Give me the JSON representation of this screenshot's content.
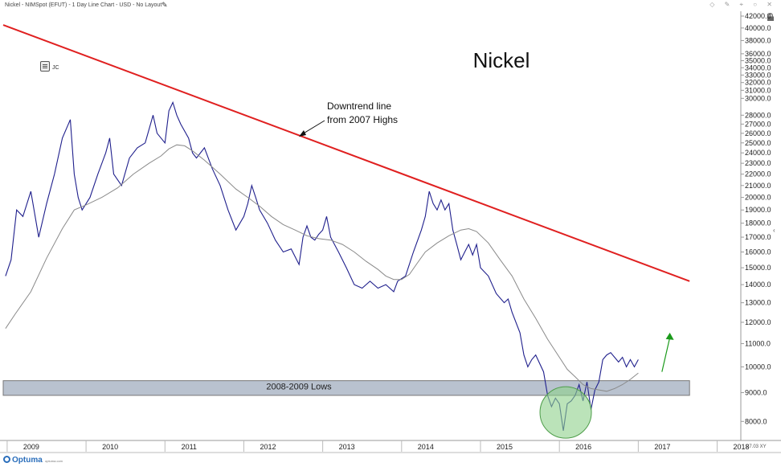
{
  "header": {
    "title": "Nickel - NIMSpot (EFUT) - 1 Day Line Chart - USD - No Layout",
    "edit_icon": "pencil-icon",
    "toolbar_icons": "◇ ✎ ⌖ ○ ✕"
  },
  "badge": {
    "label": "JC",
    "icon": "note-icon"
  },
  "footer": {
    "brand": "Optuma",
    "url": "optuma.com",
    "corner_readout": "27.03 XY"
  },
  "chart_data": {
    "type": "line",
    "title": "Nickel",
    "y_scale": "log",
    "ylim": [
      7400,
      42000
    ],
    "y_ticks": [
      42000,
      40000,
      38000,
      36000,
      35000,
      34000,
      33000,
      32000,
      31000,
      30000,
      28000,
      27000,
      26000,
      25000,
      24000,
      23000,
      22000,
      21000,
      20000,
      19000,
      18000,
      17000,
      16000,
      15000,
      14000,
      13000,
      12000,
      11000,
      10000,
      9000,
      8000
    ],
    "y_tick_labels": [
      "42000.0",
      "40000.0",
      "38000.0",
      "36000.0",
      "35000.0",
      "34000.0",
      "33000.0",
      "32000.0",
      "31000.0",
      "30000.0",
      "28000.0",
      "27000.0",
      "26000.0",
      "25000.0",
      "24000.0",
      "23000.0",
      "22000.0",
      "21000.0",
      "20000.0",
      "19000.0",
      "18000.0",
      "17000.0",
      "16000.0",
      "15000.0",
      "14000.0",
      "13000.0",
      "12000.0",
      "11000.0",
      "10000.0",
      "9000.0",
      "8000.0"
    ],
    "x_range": [
      2008.95,
      2018.3
    ],
    "x_ticks": [
      "2009",
      "2010",
      "2011",
      "2012",
      "2013",
      "2014",
      "2015",
      "2016",
      "2017",
      "2018"
    ],
    "x_tick_values": [
      2009,
      2010,
      2011,
      2012,
      2013,
      2014,
      2015,
      2016,
      2017,
      2018
    ],
    "series": [
      {
        "role": "price",
        "color": "#1f1f8c",
        "points": [
          [
            2008.98,
            14500
          ],
          [
            2009.05,
            15500
          ],
          [
            2009.12,
            19000
          ],
          [
            2009.2,
            18500
          ],
          [
            2009.3,
            20500
          ],
          [
            2009.4,
            17000
          ],
          [
            2009.5,
            19500
          ],
          [
            2009.6,
            22000
          ],
          [
            2009.7,
            25500
          ],
          [
            2009.8,
            27500
          ],
          [
            2009.85,
            22000
          ],
          [
            2009.9,
            20000
          ],
          [
            2009.95,
            19000
          ],
          [
            2010.05,
            20000
          ],
          [
            2010.15,
            22000
          ],
          [
            2010.25,
            24000
          ],
          [
            2010.3,
            25500
          ],
          [
            2010.35,
            22000
          ],
          [
            2010.45,
            21000
          ],
          [
            2010.55,
            23500
          ],
          [
            2010.65,
            24500
          ],
          [
            2010.75,
            25000
          ],
          [
            2010.85,
            28000
          ],
          [
            2010.9,
            26000
          ],
          [
            2011.0,
            25000
          ],
          [
            2011.05,
            28500
          ],
          [
            2011.1,
            29500
          ],
          [
            2011.15,
            28000
          ],
          [
            2011.2,
            27000
          ],
          [
            2011.3,
            25500
          ],
          [
            2011.35,
            24000
          ],
          [
            2011.4,
            23500
          ],
          [
            2011.5,
            24500
          ],
          [
            2011.6,
            22500
          ],
          [
            2011.7,
            21000
          ],
          [
            2011.8,
            19000
          ],
          [
            2011.9,
            17500
          ],
          [
            2012.0,
            18500
          ],
          [
            2012.05,
            19500
          ],
          [
            2012.1,
            21000
          ],
          [
            2012.15,
            20000
          ],
          [
            2012.2,
            19000
          ],
          [
            2012.3,
            18000
          ],
          [
            2012.4,
            16800
          ],
          [
            2012.5,
            16000
          ],
          [
            2012.6,
            16200
          ],
          [
            2012.7,
            15200
          ],
          [
            2012.75,
            17000
          ],
          [
            2012.8,
            17800
          ],
          [
            2012.85,
            17000
          ],
          [
            2012.9,
            16800
          ],
          [
            2012.95,
            17200
          ],
          [
            2013.0,
            17500
          ],
          [
            2013.05,
            18500
          ],
          [
            2013.1,
            17000
          ],
          [
            2013.2,
            16000
          ],
          [
            2013.3,
            15000
          ],
          [
            2013.4,
            14000
          ],
          [
            2013.5,
            13800
          ],
          [
            2013.6,
            14200
          ],
          [
            2013.7,
            13800
          ],
          [
            2013.8,
            14000
          ],
          [
            2013.9,
            13600
          ],
          [
            2013.95,
            14200
          ],
          [
            2014.05,
            14500
          ],
          [
            2014.15,
            16000
          ],
          [
            2014.25,
            17500
          ],
          [
            2014.3,
            18500
          ],
          [
            2014.35,
            20500
          ],
          [
            2014.4,
            19500
          ],
          [
            2014.45,
            19000
          ],
          [
            2014.5,
            19800
          ],
          [
            2014.55,
            19000
          ],
          [
            2014.6,
            19500
          ],
          [
            2014.65,
            17500
          ],
          [
            2014.7,
            16500
          ],
          [
            2014.75,
            15500
          ],
          [
            2014.8,
            16000
          ],
          [
            2014.85,
            16500
          ],
          [
            2014.9,
            15800
          ],
          [
            2014.95,
            16500
          ],
          [
            2015.0,
            15000
          ],
          [
            2015.1,
            14500
          ],
          [
            2015.2,
            13500
          ],
          [
            2015.3,
            13000
          ],
          [
            2015.35,
            13200
          ],
          [
            2015.4,
            12500
          ],
          [
            2015.5,
            11500
          ],
          [
            2015.55,
            10500
          ],
          [
            2015.6,
            10000
          ],
          [
            2015.65,
            10300
          ],
          [
            2015.7,
            10500
          ],
          [
            2015.8,
            9800
          ],
          [
            2015.85,
            8900
          ],
          [
            2015.9,
            8500
          ],
          [
            2015.95,
            8800
          ],
          [
            2016.0,
            8600
          ],
          [
            2016.05,
            7700
          ],
          [
            2016.1,
            8600
          ],
          [
            2016.15,
            8700
          ],
          [
            2016.2,
            8900
          ],
          [
            2016.25,
            9300
          ],
          [
            2016.3,
            8700
          ],
          [
            2016.35,
            9400
          ],
          [
            2016.4,
            8400
          ],
          [
            2016.45,
            9100
          ],
          [
            2016.5,
            9400
          ],
          [
            2016.55,
            10300
          ],
          [
            2016.6,
            10500
          ],
          [
            2016.65,
            10600
          ],
          [
            2016.7,
            10400
          ],
          [
            2016.75,
            10200
          ],
          [
            2016.8,
            10400
          ],
          [
            2016.85,
            10000
          ],
          [
            2016.9,
            10300
          ],
          [
            2016.95,
            10000
          ],
          [
            2017.0,
            10300
          ]
        ]
      },
      {
        "role": "moving-average",
        "color": "#8a8a8a",
        "points": [
          [
            2008.98,
            11700
          ],
          [
            2009.1,
            12400
          ],
          [
            2009.3,
            13600
          ],
          [
            2009.5,
            15600
          ],
          [
            2009.7,
            17600
          ],
          [
            2009.85,
            19000
          ],
          [
            2010.0,
            19400
          ],
          [
            2010.2,
            20000
          ],
          [
            2010.4,
            20800
          ],
          [
            2010.6,
            22000
          ],
          [
            2010.8,
            23000
          ],
          [
            2010.95,
            23700
          ],
          [
            2011.05,
            24400
          ],
          [
            2011.15,
            24800
          ],
          [
            2011.25,
            24700
          ],
          [
            2011.35,
            24200
          ],
          [
            2011.5,
            23300
          ],
          [
            2011.7,
            22000
          ],
          [
            2011.9,
            20700
          ],
          [
            2012.05,
            20000
          ],
          [
            2012.2,
            19300
          ],
          [
            2012.35,
            18500
          ],
          [
            2012.5,
            17900
          ],
          [
            2012.65,
            17500
          ],
          [
            2012.8,
            17100
          ],
          [
            2012.95,
            16900
          ],
          [
            2013.1,
            16800
          ],
          [
            2013.25,
            16500
          ],
          [
            2013.4,
            16000
          ],
          [
            2013.55,
            15400
          ],
          [
            2013.7,
            14900
          ],
          [
            2013.8,
            14500
          ],
          [
            2013.9,
            14300
          ],
          [
            2014.0,
            14300
          ],
          [
            2014.1,
            14600
          ],
          [
            2014.2,
            15300
          ],
          [
            2014.3,
            16000
          ],
          [
            2014.45,
            16600
          ],
          [
            2014.6,
            17100
          ],
          [
            2014.75,
            17500
          ],
          [
            2014.85,
            17600
          ],
          [
            2014.95,
            17400
          ],
          [
            2015.1,
            16600
          ],
          [
            2015.25,
            15500
          ],
          [
            2015.4,
            14500
          ],
          [
            2015.55,
            13200
          ],
          [
            2015.7,
            12200
          ],
          [
            2015.85,
            11200
          ],
          [
            2016.0,
            10400
          ],
          [
            2016.1,
            9900
          ],
          [
            2016.2,
            9600
          ],
          [
            2016.3,
            9300
          ],
          [
            2016.4,
            9150
          ],
          [
            2016.5,
            9100
          ],
          [
            2016.6,
            9050
          ],
          [
            2016.7,
            9150
          ],
          [
            2016.8,
            9300
          ],
          [
            2016.9,
            9500
          ],
          [
            2017.0,
            9750
          ]
        ]
      }
    ],
    "annotations": {
      "downtrend_line": {
        "from": [
          2008.95,
          40500
        ],
        "to": [
          2017.65,
          14200
        ],
        "color": "#e02020"
      },
      "downtrend_text": [
        "Downtrend line",
        "from 2007 Highs"
      ],
      "support_zone": {
        "label": "2008-2009 Lows",
        "low": 8900,
        "high": 9450,
        "color": "#b9c2cf"
      },
      "bottom_circle": {
        "x": 2016.08,
        "y": 8300,
        "color": "#8ed18a"
      },
      "up_arrow": {
        "from": [
          2017.3,
          9800
        ],
        "to": [
          2017.4,
          11500
        ],
        "color": "#1b9a1b"
      }
    },
    "grid": false
  }
}
